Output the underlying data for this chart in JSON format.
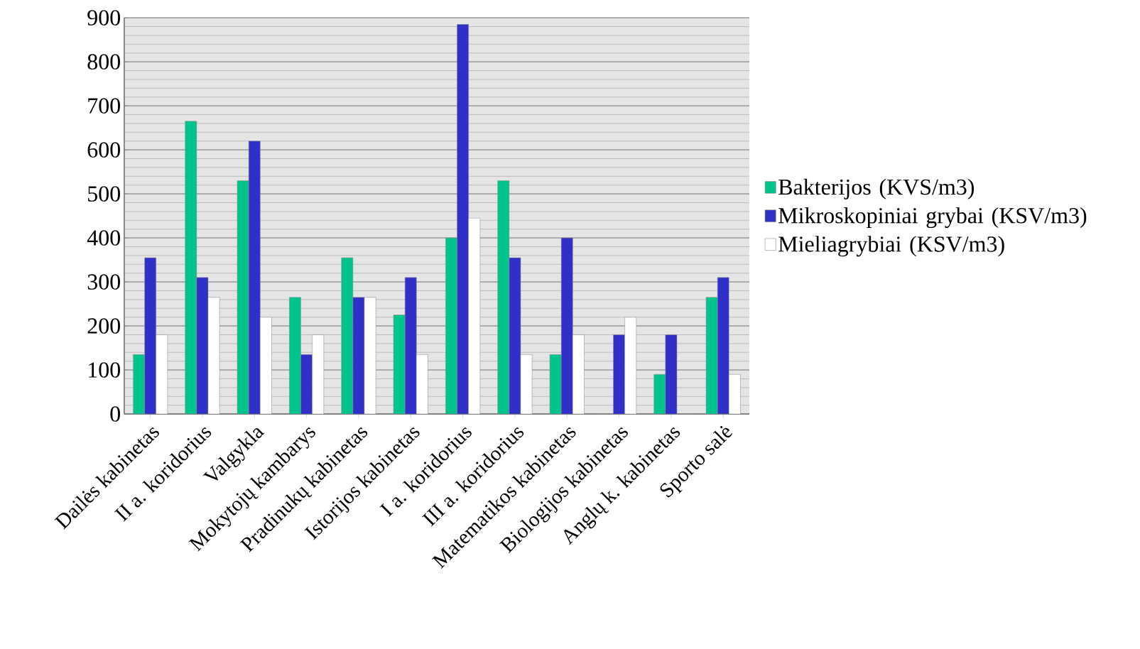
{
  "chart_data": {
    "type": "bar",
    "categories": [
      "Dailės kabinetas",
      "II a. koridorius",
      "Valgykla",
      "Mokytojų kambarys",
      "Pradinukų kabinetas",
      "Istorijos kabinetas",
      "I a. koridorius",
      "III a. koridorius",
      "Matematikos kabinetas",
      "Biologijos kabinetas",
      "Anglų k. kabinetas",
      "Sporto salė"
    ],
    "series": [
      {
        "name": "Bakterijos (KVS/m3)",
        "color": "#00c48c",
        "values": [
          135,
          665,
          530,
          265,
          355,
          225,
          400,
          530,
          135,
          0,
          90,
          265
        ]
      },
      {
        "name": "Mikroskopiniai grybai (KSV/m3)",
        "color": "#3030c8",
        "values": [
          355,
          310,
          620,
          135,
          265,
          310,
          885,
          355,
          400,
          180,
          180,
          310
        ]
      },
      {
        "name": "Mieliagrybiai (KSV/m3)",
        "color": "#ffffff",
        "values": [
          180,
          265,
          220,
          180,
          265,
          135,
          445,
          135,
          180,
          220,
          0,
          90
        ]
      }
    ],
    "ylim": [
      0,
      900
    ],
    "yticks": [
      0,
      100,
      200,
      300,
      400,
      500,
      600,
      700,
      800,
      900
    ],
    "grid": "y",
    "legend": "right"
  }
}
